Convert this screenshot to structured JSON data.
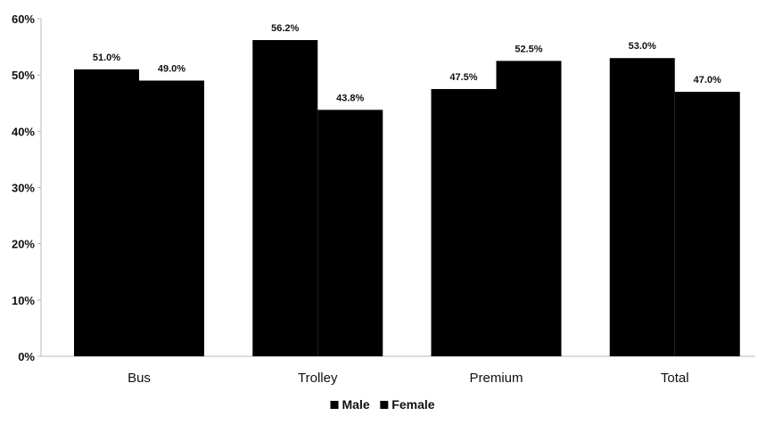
{
  "chart_data": {
    "type": "bar",
    "categories": [
      "Bus",
      "Trolley",
      "Premium",
      "Total"
    ],
    "series": [
      {
        "name": "Male",
        "values": [
          51.0,
          56.2,
          47.5,
          53.0
        ],
        "labels": [
          "51.0%",
          "56.2%",
          "47.5%",
          "53.0%"
        ],
        "color": "#000000"
      },
      {
        "name": "Female",
        "values": [
          49.0,
          43.8,
          52.5,
          47.0
        ],
        "labels": [
          "49.0%",
          "43.8%",
          "52.5%",
          "47.0%"
        ],
        "color": "#000000"
      }
    ],
    "ylim": [
      0,
      60
    ],
    "yticks": [
      0,
      10,
      20,
      30,
      40,
      50,
      60
    ],
    "ytick_labels": [
      "0%",
      "10%",
      "20%",
      "30%",
      "40%",
      "50%",
      "60%"
    ],
    "title": "",
    "xlabel": "",
    "ylabel": "",
    "legend_position": "bottom",
    "grid": false
  }
}
